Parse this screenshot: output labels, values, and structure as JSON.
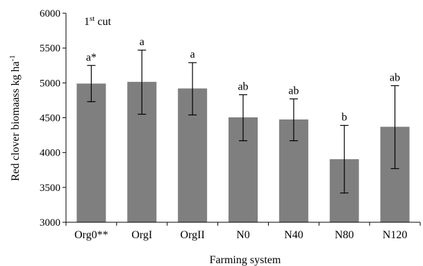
{
  "chart_data": {
    "type": "bar",
    "panel_label": {
      "main": "1",
      "sup": "st",
      "rest": " cut"
    },
    "categories": [
      "Org0**",
      "OrgI",
      "OrgII",
      "N0",
      "N40",
      "N80",
      "N120"
    ],
    "values": [
      4990,
      5015,
      4920,
      4505,
      4475,
      3905,
      4370
    ],
    "error_low": [
      4730,
      4550,
      4540,
      4170,
      4170,
      3420,
      3770
    ],
    "error_high": [
      5250,
      5470,
      5290,
      4830,
      4770,
      4390,
      4960
    ],
    "significance": [
      "a*",
      "a",
      "a",
      "ab",
      "ab",
      "b",
      "ab"
    ],
    "xlabel": "Farming system",
    "ylabel": {
      "main": "Red clover biomaass kg ha",
      "sup": "-1"
    },
    "ylim": [
      3000,
      6000
    ],
    "yticks": [
      3000,
      3500,
      4000,
      4500,
      5000,
      5500,
      6000
    ],
    "bar_color": "#7f7f7f",
    "grid": false,
    "legend": "none"
  }
}
